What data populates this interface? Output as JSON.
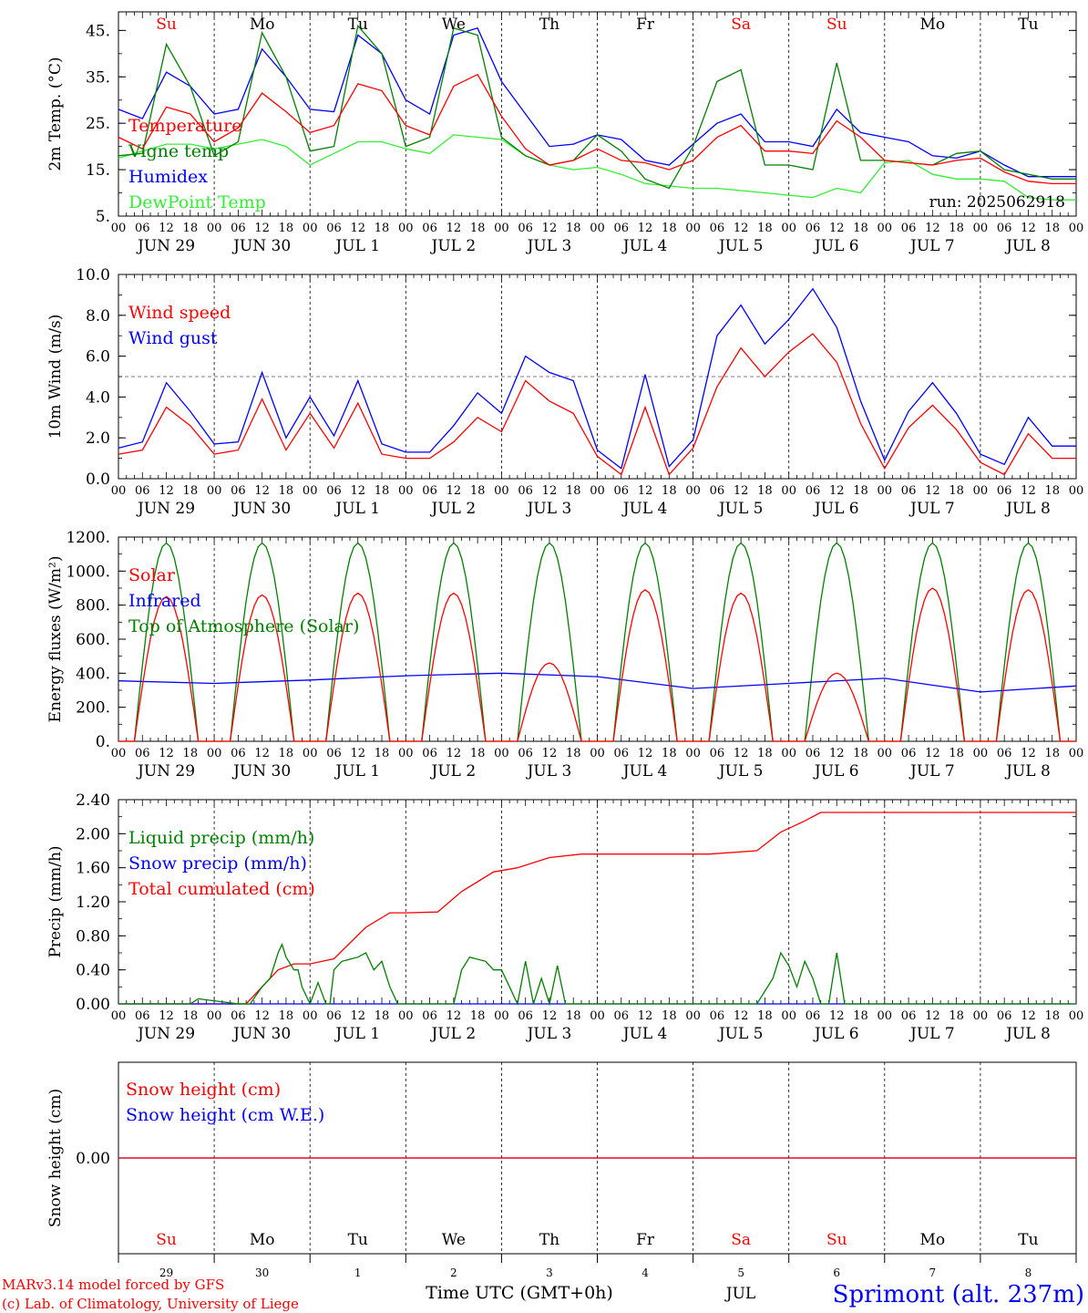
{
  "run_label": "run: 2025062918",
  "colors": {
    "red": "#ff0000",
    "green": "#008000",
    "blue": "#0000ff",
    "lime": "#33ee33",
    "weekend": "#ff0000",
    "weekday": "#000000"
  },
  "days": [
    {
      "dow": "Su",
      "date": "JUN 29",
      "num": "29",
      "weekend": true
    },
    {
      "dow": "Mo",
      "date": "JUN 30",
      "num": "30",
      "weekend": false
    },
    {
      "dow": "Tu",
      "date": "JUL  1",
      "num": "1",
      "weekend": false
    },
    {
      "dow": "We",
      "date": "JUL  2",
      "num": "2",
      "weekend": false
    },
    {
      "dow": "Th",
      "date": "JUL  3",
      "num": "3",
      "weekend": false
    },
    {
      "dow": "Fr",
      "date": "JUL  4",
      "num": "4",
      "weekend": false
    },
    {
      "dow": "Sa",
      "date": "JUL  5",
      "num": "5",
      "weekend": true
    },
    {
      "dow": "Su",
      "date": "JUL  6",
      "num": "6",
      "weekend": true
    },
    {
      "dow": "Mo",
      "date": "JUL  7",
      "num": "7",
      "weekend": false
    },
    {
      "dow": "Tu",
      "date": "JUL  8",
      "num": "8",
      "weekend": false
    }
  ],
  "hour_ticks": [
    "00",
    "06",
    "12",
    "18"
  ],
  "footer": {
    "model": "MARv3.14 model forced by GFS",
    "lab": "(c) Lab. of Climatology, University of Liege",
    "xlabel": "Time UTC (GMT+0h)",
    "month": "JUL",
    "station": "Sprimont (alt. 237m)"
  },
  "chart_data": [
    {
      "type": "line",
      "ylabel": "2m Temp. (°C)",
      "ylim": [
        5,
        49
      ],
      "yticks": [
        "5.",
        "15.",
        "25.",
        "35.",
        "45."
      ],
      "ytick_values": [
        5,
        15,
        25,
        35,
        45
      ],
      "x_unit": "hours from 2025-06-29 00 UTC",
      "series": [
        {
          "name": "Temperature",
          "color": "red",
          "x": [
            0,
            6,
            12,
            18,
            24,
            30,
            36,
            42,
            48,
            54,
            60,
            66,
            72,
            78,
            84,
            90,
            96,
            102,
            108,
            114,
            120,
            126,
            132,
            138,
            144,
            150,
            156,
            162,
            168,
            174,
            180,
            186,
            192,
            198,
            204,
            210,
            216,
            222,
            228,
            234
          ],
          "values": [
            22,
            19.5,
            28.5,
            27,
            21,
            24,
            31.5,
            27.5,
            23,
            24.5,
            33.5,
            32,
            24.5,
            22.5,
            33,
            35.5,
            26.5,
            19.5,
            16,
            17,
            19.5,
            17,
            16.5,
            15,
            17,
            22,
            24.5,
            19,
            19,
            18.5,
            25.5,
            22,
            17,
            16.5,
            16,
            17,
            17.5,
            14.5,
            12.5,
            12
          ]
        },
        {
          "name": "Vigne temp",
          "color": "green",
          "x": [
            0,
            6,
            12,
            18,
            24,
            30,
            36,
            42,
            48,
            54,
            60,
            66,
            72,
            78,
            84,
            90,
            96,
            102,
            108,
            114,
            120,
            126,
            132,
            138,
            144,
            150,
            156,
            162,
            168,
            174,
            180,
            186,
            192,
            198,
            204,
            210,
            216,
            222,
            228,
            234
          ],
          "values": [
            18,
            18.5,
            42,
            33,
            18,
            21,
            44.5,
            35,
            19,
            20,
            46,
            40,
            20,
            22,
            45.5,
            44,
            22,
            18,
            16,
            17,
            22.5,
            19,
            13,
            11,
            20,
            34,
            36.5,
            16,
            16,
            15,
            38,
            17,
            17,
            16.5,
            16,
            18.5,
            19,
            15,
            14,
            13
          ]
        },
        {
          "name": "Humidex",
          "color": "blue",
          "x": [
            0,
            6,
            12,
            18,
            24,
            30,
            36,
            42,
            48,
            54,
            60,
            66,
            72,
            78,
            84,
            90,
            96,
            102,
            108,
            114,
            120,
            126,
            132,
            138,
            144,
            150,
            156,
            162,
            168,
            174,
            180,
            186,
            192,
            198,
            204,
            210,
            216,
            222,
            228,
            234
          ],
          "values": [
            28,
            26,
            36,
            33,
            27,
            28,
            41,
            35,
            28,
            27.5,
            44,
            40,
            30,
            27,
            44,
            45.5,
            34,
            27,
            20,
            20.5,
            22.5,
            21.5,
            17,
            16,
            20.5,
            25,
            27,
            21,
            21,
            20,
            28,
            23,
            22,
            21,
            18,
            17.5,
            19,
            16,
            13.5,
            13.5
          ]
        },
        {
          "name": "DewPoint Temp",
          "color": "lime",
          "x": [
            0,
            6,
            12,
            18,
            24,
            30,
            36,
            42,
            48,
            54,
            60,
            66,
            72,
            78,
            84,
            90,
            96,
            102,
            108,
            114,
            120,
            126,
            132,
            138,
            144,
            150,
            156,
            162,
            168,
            174,
            180,
            186,
            192,
            198,
            204,
            210,
            216,
            222,
            228,
            234
          ],
          "values": [
            17.5,
            19,
            20.5,
            20.5,
            19.5,
            20.5,
            21.5,
            20,
            16,
            18.5,
            21,
            21,
            19.5,
            18.5,
            22.5,
            22,
            21.5,
            18,
            16,
            15,
            15.5,
            14,
            12,
            11.5,
            11,
            11,
            10.5,
            10,
            9.5,
            9,
            11,
            10,
            16.5,
            17,
            14,
            13,
            13,
            12.5,
            9,
            8.5
          ]
        }
      ]
    },
    {
      "type": "line",
      "ylabel": "10m Wind (m/s)",
      "ylim": [
        0,
        10
      ],
      "yticks": [
        "0.0",
        "2.0",
        "4.0",
        "6.0",
        "8.0",
        "10.0"
      ],
      "ytick_values": [
        0,
        2,
        4,
        6,
        8,
        10
      ],
      "threshold": 5,
      "series": [
        {
          "name": "Wind speed",
          "color": "red",
          "x": [
            0,
            6,
            12,
            18,
            24,
            30,
            36,
            42,
            48,
            54,
            60,
            66,
            72,
            78,
            84,
            90,
            96,
            102,
            108,
            114,
            120,
            126,
            132,
            138,
            144,
            150,
            156,
            162,
            168,
            174,
            180,
            186,
            192,
            198,
            204,
            210,
            216,
            222,
            228,
            234
          ],
          "values": [
            1.2,
            1.4,
            3.5,
            2.6,
            1.2,
            1.4,
            3.9,
            1.4,
            3.2,
            1.5,
            3.7,
            1.2,
            1.0,
            1.0,
            1.8,
            3.0,
            2.3,
            4.8,
            3.8,
            3.2,
            1.1,
            0.2,
            3.5,
            0.2,
            1.5,
            4.5,
            6.4,
            5.0,
            6.2,
            7.1,
            5.7,
            2.7,
            0.5,
            2.5,
            3.6,
            2.4,
            0.8,
            0.2,
            2.2,
            1.0
          ]
        },
        {
          "name": "Wind gust",
          "color": "blue",
          "x": [
            0,
            6,
            12,
            18,
            24,
            30,
            36,
            42,
            48,
            54,
            60,
            66,
            72,
            78,
            84,
            90,
            96,
            102,
            108,
            114,
            120,
            126,
            132,
            138,
            144,
            150,
            156,
            162,
            168,
            174,
            180,
            186,
            192,
            198,
            204,
            210,
            216,
            222,
            228,
            234
          ],
          "values": [
            1.5,
            1.8,
            4.7,
            3.3,
            1.7,
            1.8,
            5.2,
            2.0,
            4.0,
            2.1,
            4.8,
            1.7,
            1.3,
            1.3,
            2.6,
            4.2,
            3.2,
            6.0,
            5.2,
            4.8,
            1.4,
            0.5,
            5.1,
            0.6,
            1.9,
            7.0,
            8.5,
            6.6,
            7.8,
            9.3,
            7.4,
            3.8,
            0.9,
            3.3,
            4.7,
            3.2,
            1.2,
            0.7,
            3.0,
            1.6
          ]
        }
      ]
    },
    {
      "type": "line",
      "ylabel": "Energy fluxes (W/m²)",
      "ylim": [
        0,
        1200
      ],
      "yticks": [
        "0.",
        "200.",
        "400.",
        "600.",
        "800.",
        "1000.",
        "1200."
      ],
      "ytick_values": [
        0,
        200,
        400,
        600,
        800,
        1000,
        1200
      ],
      "series": [
        {
          "name": "Solar",
          "color": "red",
          "daily_peaks": [
            850,
            860,
            870,
            870,
            460,
            890,
            870,
            400,
            900,
            890
          ]
        },
        {
          "name": "Infrared",
          "color": "blue",
          "x": [
            0,
            24,
            48,
            72,
            96,
            120,
            144,
            168,
            192,
            216,
            240
          ],
          "values": [
            355,
            340,
            360,
            385,
            400,
            380,
            310,
            340,
            370,
            290,
            325
          ]
        },
        {
          "name": "Top of Atmosphere (Solar)",
          "color": "green",
          "daily_peaks": [
            1165,
            1165,
            1165,
            1165,
            1165,
            1165,
            1165,
            1165,
            1165,
            1165
          ]
        }
      ]
    },
    {
      "type": "line",
      "ylabel": "Precip (mm/h)",
      "ylim": [
        0,
        2.4
      ],
      "yticks": [
        "0.00",
        "0.40",
        "0.80",
        "1.20",
        "1.60",
        "2.00",
        "2.40"
      ],
      "ytick_values": [
        0,
        0.4,
        0.8,
        1.2,
        1.6,
        2.0,
        2.4
      ],
      "series": [
        {
          "name": "Liquid precip (mm/h)",
          "color": "green",
          "x": [
            0,
            18,
            20,
            30,
            33,
            36,
            38,
            40,
            41,
            42,
            44,
            45,
            46,
            48,
            50,
            52,
            53,
            54,
            56,
            60,
            62,
            64,
            66,
            68,
            70,
            72,
            84,
            86,
            88,
            92,
            94,
            96,
            98,
            100,
            102,
            104,
            106,
            108,
            110,
            112,
            114,
            160,
            164,
            166,
            168,
            170,
            172,
            174,
            176,
            178,
            180,
            182,
            240
          ],
          "values": [
            0,
            0,
            0.06,
            0,
            0,
            0.2,
            0.3,
            0.6,
            0.7,
            0.55,
            0.4,
            0.4,
            0.2,
            0,
            0.25,
            0,
            0,
            0.4,
            0.5,
            0.55,
            0.6,
            0.4,
            0.5,
            0.2,
            0,
            0,
            0,
            0.4,
            0.55,
            0.5,
            0.4,
            0.4,
            0.2,
            0,
            0.5,
            0,
            0.3,
            0,
            0.45,
            0,
            0,
            0,
            0.3,
            0.6,
            0.45,
            0.2,
            0.5,
            0.3,
            0,
            0,
            0.6,
            0,
            0
          ]
        },
        {
          "name": "Snow precip (mm/h)",
          "color": "blue",
          "x": [
            0,
            240
          ],
          "values": [
            0,
            0
          ]
        },
        {
          "name": "Total cumulated (cm)",
          "color": "red",
          "x": [
            0,
            32,
            40,
            44,
            48,
            54,
            62,
            68,
            72,
            80,
            86,
            94,
            100,
            108,
            116,
            120,
            148,
            160,
            166,
            172,
            176,
            240
          ],
          "values": [
            0,
            0,
            0.4,
            0.47,
            0.47,
            0.53,
            0.9,
            1.07,
            1.07,
            1.08,
            1.32,
            1.55,
            1.6,
            1.72,
            1.76,
            1.76,
            1.76,
            1.8,
            2.02,
            2.15,
            2.25,
            2.25
          ]
        }
      ]
    },
    {
      "type": "line",
      "ylabel": "Snow height (cm)",
      "ylim": [
        -1,
        1
      ],
      "yticks": [
        "0.00"
      ],
      "ytick_values": [
        0
      ],
      "series": [
        {
          "name": "Snow height (cm)",
          "color": "red",
          "x": [
            0,
            240
          ],
          "values": [
            0,
            0
          ]
        },
        {
          "name": "Snow height (cm W.E.)",
          "color": "blue",
          "x": [
            0,
            240
          ],
          "values": [
            0,
            0
          ]
        }
      ]
    }
  ]
}
